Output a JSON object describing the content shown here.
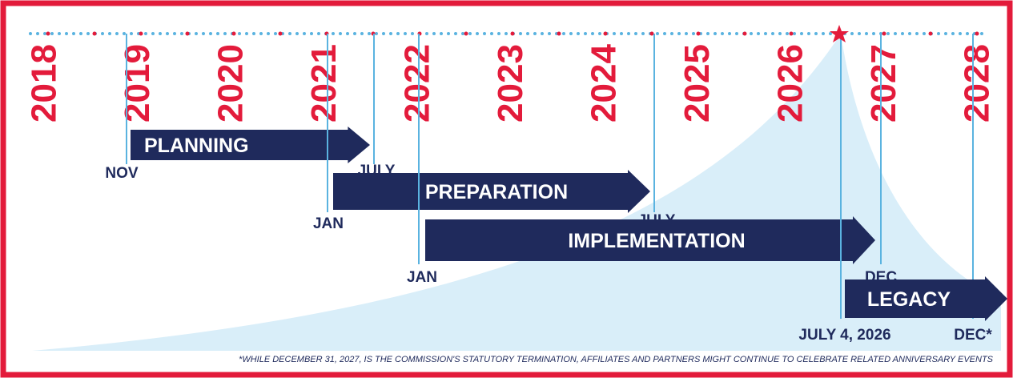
{
  "years": [
    "2018",
    "2019",
    "2020",
    "2021",
    "2022",
    "2023",
    "2024",
    "2025",
    "2026",
    "2027",
    "2028"
  ],
  "phases": [
    {
      "label": "PLANNING",
      "start": "NOV",
      "end": "JULY"
    },
    {
      "label": "PREPARATION",
      "start": "JAN",
      "end": "JULY"
    },
    {
      "label": "IMPLEMENTATION",
      "start": "JAN",
      "end": "DEC"
    },
    {
      "label": "LEGACY",
      "start": "JULY 4, 2026",
      "end": "DEC*"
    }
  ],
  "footnote": "*WHILE DECEMBER 31, 2027, IS THE COMMISSION'S STATUTORY TERMINATION, AFFILIATES AND PARTNERS MIGHT CONTINUE TO CELEBRATE RELATED ANNIVERSARY EVENTS"
}
